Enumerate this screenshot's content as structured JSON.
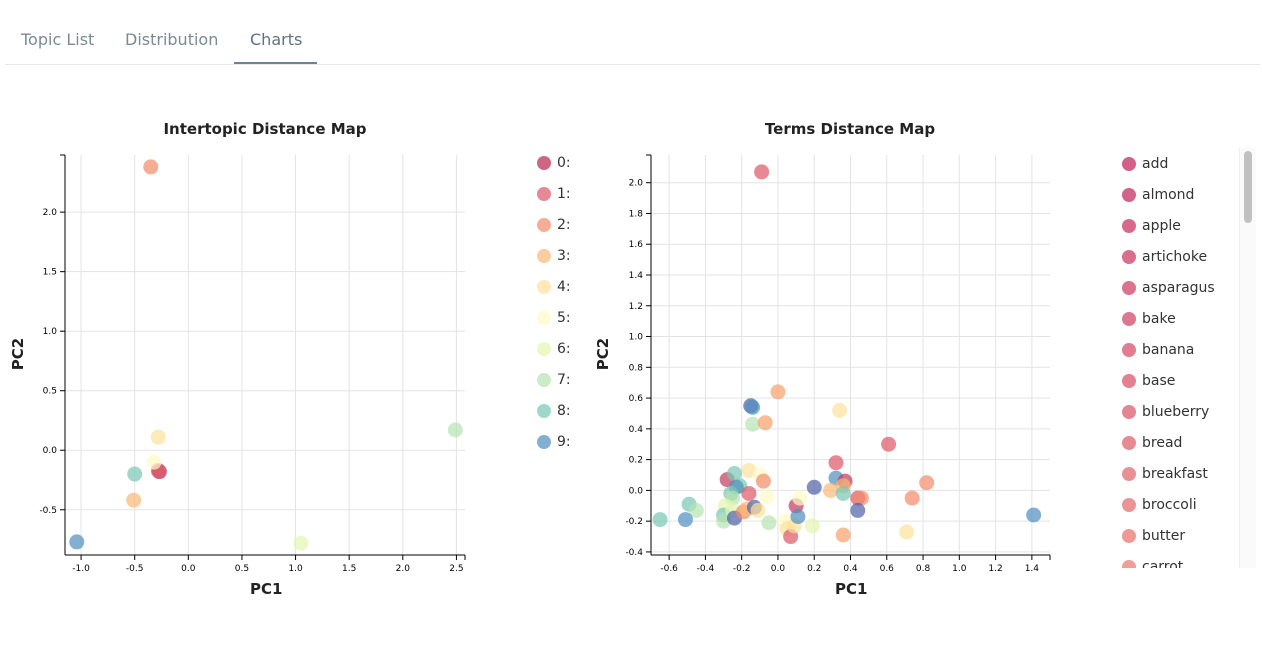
{
  "tabs": [
    {
      "label": "Topic List"
    },
    {
      "label": "Distribution"
    },
    {
      "label": "Charts"
    }
  ],
  "chart_data": [
    {
      "type": "scatter",
      "title": "Intertopic Distance Map",
      "xlabel": "PC1",
      "ylabel": "PC2",
      "xlim": [
        -1.15,
        2.58
      ],
      "ylim": [
        -0.88,
        2.48
      ],
      "xticks": [
        -1.0,
        -0.5,
        0.0,
        0.5,
        1.0,
        1.5,
        2.0,
        2.5
      ],
      "xtick_labels": [
        "-1.0",
        "-0.5",
        "0.0",
        "0.5",
        "1.0",
        "1.5",
        "2.0",
        "2.5"
      ],
      "yticks": [
        -0.5,
        0.0,
        0.5,
        1.0,
        1.5,
        2.0
      ],
      "ytick_labels": [
        "-0.5",
        "0.0",
        "0.5",
        "1.0",
        "1.5",
        "2.0"
      ],
      "grid": true,
      "legend": "right",
      "points": [
        {
          "label": "0:",
          "color": "#b8244e",
          "x": -0.27,
          "y": -0.18
        },
        {
          "label": "1:",
          "color": "#dd5768",
          "x": -0.28,
          "y": -0.17
        },
        {
          "label": "2:",
          "color": "#f18a68",
          "x": -0.35,
          "y": 2.38
        },
        {
          "label": "3:",
          "color": "#fbb875",
          "x": -0.51,
          "y": -0.42
        },
        {
          "label": "4:",
          "color": "#fee19a",
          "x": -0.28,
          "y": 0.11
        },
        {
          "label": "5:",
          "color": "#fefbc6",
          "x": -0.32,
          "y": -0.1
        },
        {
          "label": "6:",
          "color": "#e6f5b0",
          "x": 1.05,
          "y": -0.78
        },
        {
          "label": "7:",
          "color": "#b7e3b0",
          "x": 2.49,
          "y": 0.17
        },
        {
          "label": "8:",
          "color": "#76c8b4",
          "x": -0.5,
          "y": -0.2
        },
        {
          "label": "9:",
          "color": "#4f8ebf",
          "x": -1.04,
          "y": -0.77
        }
      ]
    },
    {
      "type": "scatter",
      "title": "Terms Distance Map",
      "xlabel": "PC1",
      "ylabel": "PC2",
      "xlim": [
        -0.7,
        1.5
      ],
      "ylim": [
        -0.42,
        2.18
      ],
      "xticks": [
        -0.6,
        -0.4,
        -0.2,
        0.0,
        0.2,
        0.4,
        0.6,
        0.8,
        1.0,
        1.2,
        1.4
      ],
      "xtick_labels": [
        "-0.6",
        "-0.4",
        "-0.2",
        "0.0",
        "0.2",
        "0.4",
        "0.6",
        "0.8",
        "1.0",
        "1.2",
        "1.4"
      ],
      "yticks": [
        -0.4,
        -0.2,
        0.0,
        0.2,
        0.4,
        0.6,
        0.8,
        1.0,
        1.2,
        1.4,
        1.6,
        1.8,
        2.0
      ],
      "ytick_labels": [
        "-0.4",
        "-0.2",
        "0.0",
        "0.2",
        "0.4",
        "0.6",
        "0.8",
        "1.0",
        "1.2",
        "1.4",
        "1.6",
        "1.8",
        "2.0"
      ],
      "grid": true,
      "legend": "right",
      "legend_entries": [
        {
          "label": "add",
          "color": "#c7386a"
        },
        {
          "label": "almond",
          "color": "#c73c6c"
        },
        {
          "label": "apple",
          "color": "#cd4470"
        },
        {
          "label": "artichoke",
          "color": "#d04a70"
        },
        {
          "label": "asparagus",
          "color": "#d24f72"
        },
        {
          "label": "bake",
          "color": "#d55573"
        },
        {
          "label": "banana",
          "color": "#d95b75"
        },
        {
          "label": "base",
          "color": "#dc6276"
        },
        {
          "label": "blueberry",
          "color": "#de6878"
        },
        {
          "label": "bread",
          "color": "#e06e79"
        },
        {
          "label": "breakfast",
          "color": "#e2757a"
        },
        {
          "label": "broccoli",
          "color": "#e57b7b"
        },
        {
          "label": "butter",
          "color": "#e8817c"
        },
        {
          "label": "carrot",
          "color": "#ea877e"
        }
      ],
      "points": [
        {
          "x": -0.09,
          "y": 2.07,
          "color": "#dd5768"
        },
        {
          "x": 0.0,
          "y": 0.64,
          "color": "#f7a06b"
        },
        {
          "x": -0.15,
          "y": 0.55,
          "color": "#4e5fa7"
        },
        {
          "x": -0.14,
          "y": 0.54,
          "color": "#4f8ebf"
        },
        {
          "x": -0.14,
          "y": 0.43,
          "color": "#b7e3b0"
        },
        {
          "x": -0.07,
          "y": 0.44,
          "color": "#f7a06b"
        },
        {
          "x": 0.34,
          "y": 0.52,
          "color": "#fee19a"
        },
        {
          "x": 0.61,
          "y": 0.3,
          "color": "#dd5768"
        },
        {
          "x": 0.32,
          "y": 0.18,
          "color": "#dd5768"
        },
        {
          "x": -0.28,
          "y": 0.07,
          "color": "#c03a5e"
        },
        {
          "x": -0.24,
          "y": 0.11,
          "color": "#76c8b4"
        },
        {
          "x": -0.16,
          "y": 0.13,
          "color": "#fee19a"
        },
        {
          "x": -0.1,
          "y": 0.1,
          "color": "#fefbc6"
        },
        {
          "x": -0.08,
          "y": 0.06,
          "color": "#f18a68"
        },
        {
          "x": -0.21,
          "y": 0.03,
          "color": "#76c8b4"
        },
        {
          "x": -0.23,
          "y": 0.02,
          "color": "#4f8ebf"
        },
        {
          "x": -0.16,
          "y": -0.02,
          "color": "#dd5768"
        },
        {
          "x": -0.26,
          "y": -0.02,
          "color": "#76c8b4"
        },
        {
          "x": -0.25,
          "y": -0.05,
          "color": "#b7e3b0"
        },
        {
          "x": -0.06,
          "y": -0.04,
          "color": "#fefbc6"
        },
        {
          "x": 0.2,
          "y": 0.02,
          "color": "#4e5fa7"
        },
        {
          "x": 0.32,
          "y": 0.08,
          "color": "#4f8ebf"
        },
        {
          "x": 0.37,
          "y": 0.06,
          "color": "#c03a5e"
        },
        {
          "x": 0.36,
          "y": 0.03,
          "color": "#fbb875"
        },
        {
          "x": 0.29,
          "y": 0.0,
          "color": "#fbb875"
        },
        {
          "x": 0.36,
          "y": -0.02,
          "color": "#76c8b4"
        },
        {
          "x": 0.44,
          "y": -0.05,
          "color": "#dd5768"
        },
        {
          "x": 0.46,
          "y": -0.05,
          "color": "#f18a68"
        },
        {
          "x": 0.44,
          "y": -0.13,
          "color": "#4e5fa7"
        },
        {
          "x": 0.74,
          "y": -0.05,
          "color": "#f18a68"
        },
        {
          "x": 0.82,
          "y": 0.05,
          "color": "#f18a68"
        },
        {
          "x": 0.71,
          "y": -0.27,
          "color": "#fee19a"
        },
        {
          "x": 1.41,
          "y": -0.16,
          "color": "#4f8ebf"
        },
        {
          "x": 0.36,
          "y": -0.29,
          "color": "#f7a06b"
        },
        {
          "x": -0.49,
          "y": -0.09,
          "color": "#76c8b4"
        },
        {
          "x": -0.45,
          "y": -0.13,
          "color": "#b7e3b0"
        },
        {
          "x": -0.51,
          "y": -0.19,
          "color": "#4f8ebf"
        },
        {
          "x": -0.65,
          "y": -0.19,
          "color": "#76c8b4"
        },
        {
          "x": -0.29,
          "y": -0.1,
          "color": "#e6f5b0"
        },
        {
          "x": -0.3,
          "y": -0.16,
          "color": "#76c8b4"
        },
        {
          "x": -0.3,
          "y": -0.2,
          "color": "#b7e3b0"
        },
        {
          "x": -0.25,
          "y": -0.13,
          "color": "#e6f5b0"
        },
        {
          "x": -0.24,
          "y": -0.18,
          "color": "#4e5fa7"
        },
        {
          "x": -0.19,
          "y": -0.14,
          "color": "#f18a68"
        },
        {
          "x": -0.17,
          "y": -0.12,
          "color": "#fbb875"
        },
        {
          "x": -0.13,
          "y": -0.11,
          "color": "#4e5fa7"
        },
        {
          "x": -0.11,
          "y": -0.13,
          "color": "#fee19a"
        },
        {
          "x": -0.05,
          "y": -0.21,
          "color": "#b7e3b0"
        },
        {
          "x": 0.04,
          "y": -0.2,
          "color": "#fefbc6"
        },
        {
          "x": 0.05,
          "y": -0.25,
          "color": "#fee19a"
        },
        {
          "x": 0.07,
          "y": -0.3,
          "color": "#dd5768"
        },
        {
          "x": 0.09,
          "y": -0.23,
          "color": "#fee19a"
        },
        {
          "x": 0.1,
          "y": -0.1,
          "color": "#c03a5e"
        },
        {
          "x": 0.11,
          "y": -0.17,
          "color": "#4f8ebf"
        },
        {
          "x": 0.12,
          "y": -0.05,
          "color": "#fefbc6"
        },
        {
          "x": 0.19,
          "y": -0.23,
          "color": "#e6f5b0"
        }
      ]
    }
  ]
}
